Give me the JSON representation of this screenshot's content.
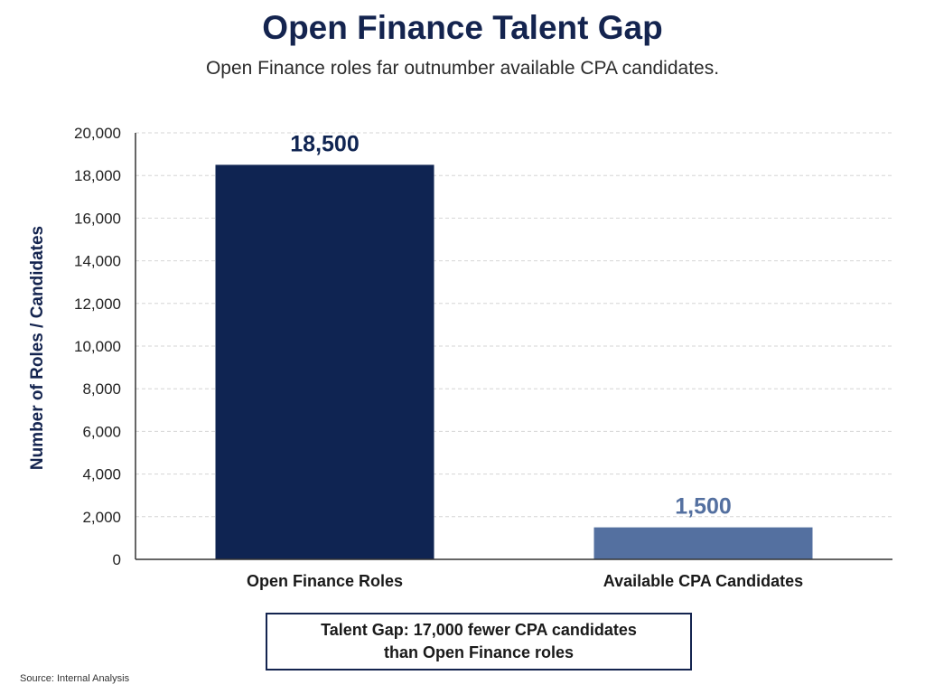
{
  "title": "Open Finance Talent Gap",
  "subtitle": "Open Finance roles far outnumber available CPA candidates.",
  "chart_data": {
    "type": "bar",
    "title": "Open Finance Talent Gap",
    "subtitle": "Open Finance roles far outnumber available CPA candidates.",
    "categories": [
      "Open Finance Roles",
      "Available CPA Candidates"
    ],
    "values": [
      18500,
      1500
    ],
    "value_labels": [
      "18,500",
      "1,500"
    ],
    "colors": [
      "#0f2452",
      "#5470a0"
    ],
    "label_colors": [
      "#0f2452",
      "#5470a0"
    ],
    "xlabel": "",
    "ylabel": "Number of Roles / Candidates",
    "ylim": [
      0,
      20000
    ],
    "y_ticks": [
      0,
      2000,
      4000,
      6000,
      8000,
      10000,
      12000,
      14000,
      16000,
      18000,
      20000
    ],
    "y_tick_labels": [
      "0",
      "2,000",
      "4,000",
      "6,000",
      "8,000",
      "10,000",
      "12,000",
      "14,000",
      "16,000",
      "18,000",
      "20,000"
    ],
    "grid": true,
    "legend": "none"
  },
  "annotation": {
    "line1": "Talent Gap: 17,000 fewer CPA candidates",
    "line2": "than Open Finance roles"
  },
  "source": "Source: Internal Analysis"
}
